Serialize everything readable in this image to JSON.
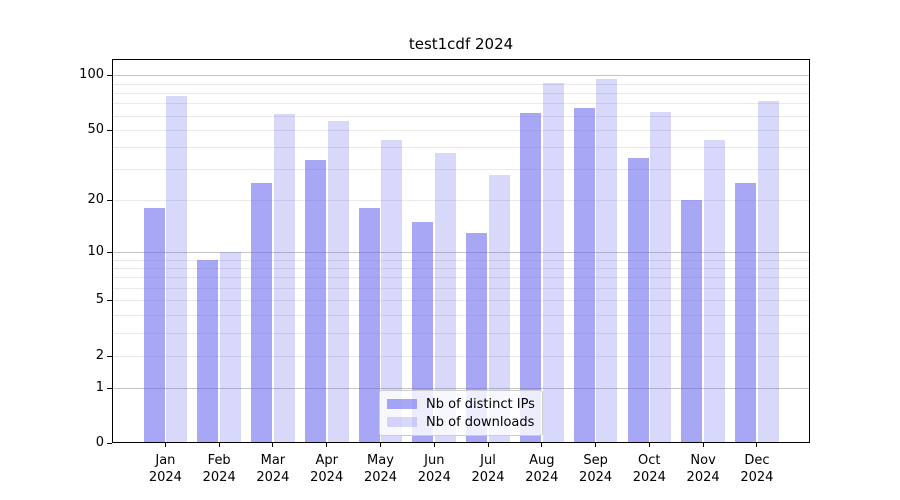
{
  "title": "test1cdf 2024",
  "chart_data": {
    "type": "bar",
    "title": "test1cdf 2024",
    "yscale": "log1p (symlog-like, 0 shown at axis bottom)",
    "ylim": [
      0,
      121
    ],
    "grid": true,
    "legend_position": "lower center (inside plot)",
    "categories": [
      {
        "month": "Jan",
        "year": "2024"
      },
      {
        "month": "Feb",
        "year": "2024"
      },
      {
        "month": "Mar",
        "year": "2024"
      },
      {
        "month": "Apr",
        "year": "2024"
      },
      {
        "month": "May",
        "year": "2024"
      },
      {
        "month": "Jun",
        "year": "2024"
      },
      {
        "month": "Jul",
        "year": "2024"
      },
      {
        "month": "Aug",
        "year": "2024"
      },
      {
        "month": "Sep",
        "year": "2024"
      },
      {
        "month": "Oct",
        "year": "2024"
      },
      {
        "month": "Nov",
        "year": "2024"
      },
      {
        "month": "Dec",
        "year": "2024"
      }
    ],
    "series": [
      {
        "name": "Nb of distinct IPs",
        "slug": "ips",
        "color": "rgba(100,100,240,0.57)",
        "values": [
          18,
          9,
          25,
          34,
          18,
          15,
          13,
          62,
          66,
          35,
          20,
          25
        ]
      },
      {
        "name": "Nb of downloads",
        "slug": "downloads",
        "color": "rgba(100,100,240,0.25)",
        "values": [
          77,
          10,
          61,
          56,
          44,
          37,
          28,
          91,
          96,
          63,
          44,
          72
        ]
      }
    ],
    "yticks": [
      0,
      1,
      2,
      5,
      10,
      20,
      50,
      100
    ],
    "major_gridlines": [
      1,
      10,
      100
    ],
    "minor_gridlines": [
      2,
      3,
      4,
      5,
      6,
      7,
      8,
      9,
      20,
      30,
      40,
      50,
      60,
      70,
      80,
      90
    ]
  },
  "colors": {
    "background": "#ffffff",
    "bar_base": "#6464f0",
    "major_grid": "#c4c4c4",
    "minor_grid": "#e9e9e9",
    "spine": "#000000",
    "legend_border": "#cccccc"
  }
}
